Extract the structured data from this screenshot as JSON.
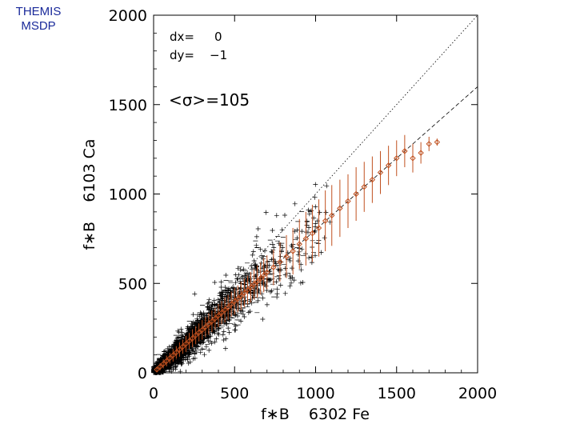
{
  "corner_label": [
    "THEMIS",
    "MSDP"
  ],
  "chart_data": {
    "type": "scatter",
    "xlabel": "f∗B    6302 Fe",
    "ylabel": "f∗B    6103 Ca",
    "xlim": [
      0,
      2000
    ],
    "ylim": [
      0,
      2000
    ],
    "x_ticks": [
      "0",
      "500",
      "1000",
      "1500",
      "2000"
    ],
    "y_ticks": [
      "0",
      "500",
      "1000",
      "1500",
      "2000"
    ],
    "annotations": {
      "dx_label": "dx=",
      "dx_value": "0",
      "dy_label": "dy=",
      "dy_value": "−1",
      "sigma": "<σ>=105"
    },
    "reference_lines": [
      {
        "name": "identity",
        "style": "dotted",
        "slope": 1.0,
        "intercept": 0
      },
      {
        "name": "fit",
        "style": "dashed",
        "slope": 0.8,
        "intercept": 0
      }
    ],
    "binned_means": {
      "color": "#c0501f",
      "marker": "diamond",
      "x": [
        20,
        40,
        60,
        80,
        100,
        120,
        140,
        160,
        180,
        200,
        220,
        240,
        260,
        280,
        300,
        320,
        340,
        360,
        380,
        400,
        420,
        440,
        460,
        480,
        500,
        520,
        540,
        560,
        580,
        600,
        620,
        640,
        660,
        680,
        700,
        740,
        780,
        820,
        860,
        900,
        940,
        980,
        1020,
        1060,
        1100,
        1150,
        1200,
        1250,
        1300,
        1350,
        1400,
        1450,
        1500,
        1550,
        1600,
        1650,
        1700,
        1750
      ],
      "y": [
        18,
        34,
        50,
        66,
        82,
        98,
        114,
        130,
        146,
        162,
        178,
        193,
        210,
        226,
        240,
        256,
        273,
        288,
        304,
        320,
        336,
        352,
        366,
        384,
        400,
        414,
        430,
        447,
        463,
        478,
        495,
        510,
        527,
        545,
        562,
        590,
        620,
        650,
        680,
        720,
        750,
        780,
        810,
        850,
        880,
        920,
        960,
        1000,
        1040,
        1080,
        1120,
        1160,
        1200,
        1240,
        1200,
        1230,
        1280,
        1290
      ],
      "err": [
        15,
        20,
        25,
        30,
        30,
        35,
        35,
        40,
        40,
        45,
        45,
        50,
        50,
        50,
        55,
        55,
        60,
        60,
        60,
        65,
        65,
        70,
        70,
        70,
        75,
        75,
        80,
        80,
        80,
        85,
        85,
        90,
        90,
        95,
        95,
        100,
        110,
        120,
        130,
        140,
        150,
        160,
        160,
        170,
        170,
        160,
        150,
        150,
        140,
        130,
        120,
        110,
        100,
        90,
        80,
        60,
        40,
        20
      ]
    }
  }
}
